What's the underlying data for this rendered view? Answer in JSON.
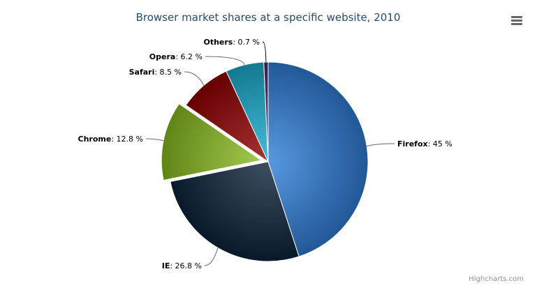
{
  "chart_data": {
    "type": "pie",
    "title": "Browser market shares at a specific website, 2010",
    "unit": "%",
    "slices": [
      {
        "name": "Firefox",
        "value": 45,
        "color": "#2f7ed8",
        "sliced": false
      },
      {
        "name": "IE",
        "value": 26.8,
        "color": "#0d233a",
        "sliced": false
      },
      {
        "name": "Chrome",
        "value": 12.8,
        "color": "#8bbc21",
        "sliced": true
      },
      {
        "name": "Safari",
        "value": 8.5,
        "color": "#910000",
        "sliced": false
      },
      {
        "name": "Opera",
        "value": 6.2,
        "color": "#1aadce",
        "sliced": false
      },
      {
        "name": "Others",
        "value": 0.7,
        "color": "#492970",
        "sliced": false
      }
    ],
    "value_labels": [
      "45 %",
      "26.8 %",
      "12.8 %",
      "8.5 %",
      "6.2 %",
      "0.7 %"
    ]
  },
  "credits": "Highcharts.com",
  "menu_icon": "hamburger-menu-icon"
}
